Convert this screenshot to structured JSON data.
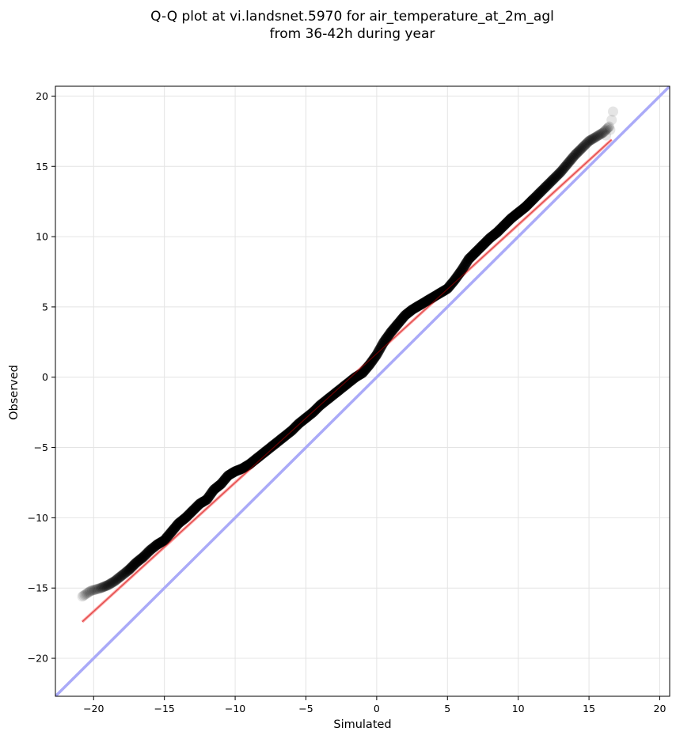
{
  "chart_data": {
    "type": "scatter",
    "title_lines": [
      "Q-Q plot at vi.landsnet.5970 for air_temperature_at_2m_agl",
      "from 36-42h during year"
    ],
    "xlabel": "Simulated",
    "ylabel": "Observed",
    "xlim": [
      -22.7,
      20.7
    ],
    "ylim": [
      -22.7,
      20.7
    ],
    "xticks": [
      -20,
      -15,
      -10,
      -5,
      0,
      5,
      10,
      15,
      20
    ],
    "yticks": [
      -20,
      -15,
      -10,
      -5,
      0,
      5,
      10,
      15,
      20
    ],
    "xtick_labels": [
      "−20",
      "−15",
      "−10",
      "−5",
      "0",
      "5",
      "10",
      "15",
      "20"
    ],
    "ytick_labels": [
      "−20",
      "−15",
      "−10",
      "−5",
      "0",
      "5",
      "10",
      "15",
      "20"
    ],
    "grid": true,
    "curve": {
      "x": [
        -20.8,
        -20.2,
        -19.5,
        -19.0,
        -18.5,
        -18.0,
        -17.5,
        -17.0,
        -16.5,
        -16.0,
        -15.5,
        -15.0,
        -14.5,
        -14.0,
        -13.5,
        -13.0,
        -12.5,
        -12.0,
        -11.5,
        -11.0,
        -10.5,
        -10.0,
        -9.5,
        -9.0,
        -8.5,
        -8.0,
        -7.5,
        -7.0,
        -6.5,
        -6.0,
        -5.5,
        -5.0,
        -4.5,
        -4.0,
        -3.5,
        -3.0,
        -2.5,
        -2.0,
        -1.5,
        -1.0,
        -0.5,
        0.0,
        0.5,
        1.0,
        1.5,
        2.0,
        2.5,
        3.0,
        3.5,
        4.0,
        4.5,
        5.0,
        5.5,
        6.0,
        6.5,
        7.0,
        7.5,
        8.0,
        8.5,
        9.0,
        9.5,
        10.0,
        10.5,
        11.0,
        11.5,
        12.0,
        12.5,
        13.0,
        13.5,
        14.0,
        14.5,
        15.0,
        15.5,
        16.0,
        16.5
      ],
      "y": [
        -15.6,
        -15.2,
        -15.0,
        -14.8,
        -14.5,
        -14.1,
        -13.7,
        -13.2,
        -12.8,
        -12.3,
        -11.9,
        -11.6,
        -11.0,
        -10.4,
        -10.0,
        -9.5,
        -9.0,
        -8.7,
        -8.0,
        -7.6,
        -7.0,
        -6.7,
        -6.5,
        -6.2,
        -5.8,
        -5.4,
        -5.0,
        -4.6,
        -4.2,
        -3.8,
        -3.3,
        -2.9,
        -2.5,
        -2.0,
        -1.6,
        -1.2,
        -0.8,
        -0.4,
        0.0,
        0.3,
        0.9,
        1.6,
        2.5,
        3.2,
        3.8,
        4.4,
        4.8,
        5.1,
        5.4,
        5.7,
        6.0,
        6.3,
        6.9,
        7.6,
        8.4,
        8.9,
        9.4,
        9.9,
        10.3,
        10.8,
        11.3,
        11.7,
        12.1,
        12.6,
        13.1,
        13.6,
        14.1,
        14.6,
        15.2,
        15.8,
        16.3,
        16.8,
        17.1,
        17.4,
        17.9
      ],
      "tail_points": [
        [
          16.2,
          17.2
        ],
        [
          16.5,
          17.6
        ],
        [
          16.6,
          18.3
        ],
        [
          16.7,
          18.9
        ]
      ]
    },
    "fit_line": {
      "x": [
        -20.8,
        16.6
      ],
      "y": [
        -17.4,
        16.9
      ]
    },
    "identity_line": {
      "x": [
        -22.7,
        20.7
      ],
      "y": [
        -22.7,
        20.7
      ]
    },
    "colors": {
      "points": "#000000",
      "fit_line": "#ff9e9e",
      "identity_line": "#aaaaf8",
      "fit_line_inner": "#c00000",
      "grid": "#e4e4e4"
    }
  }
}
